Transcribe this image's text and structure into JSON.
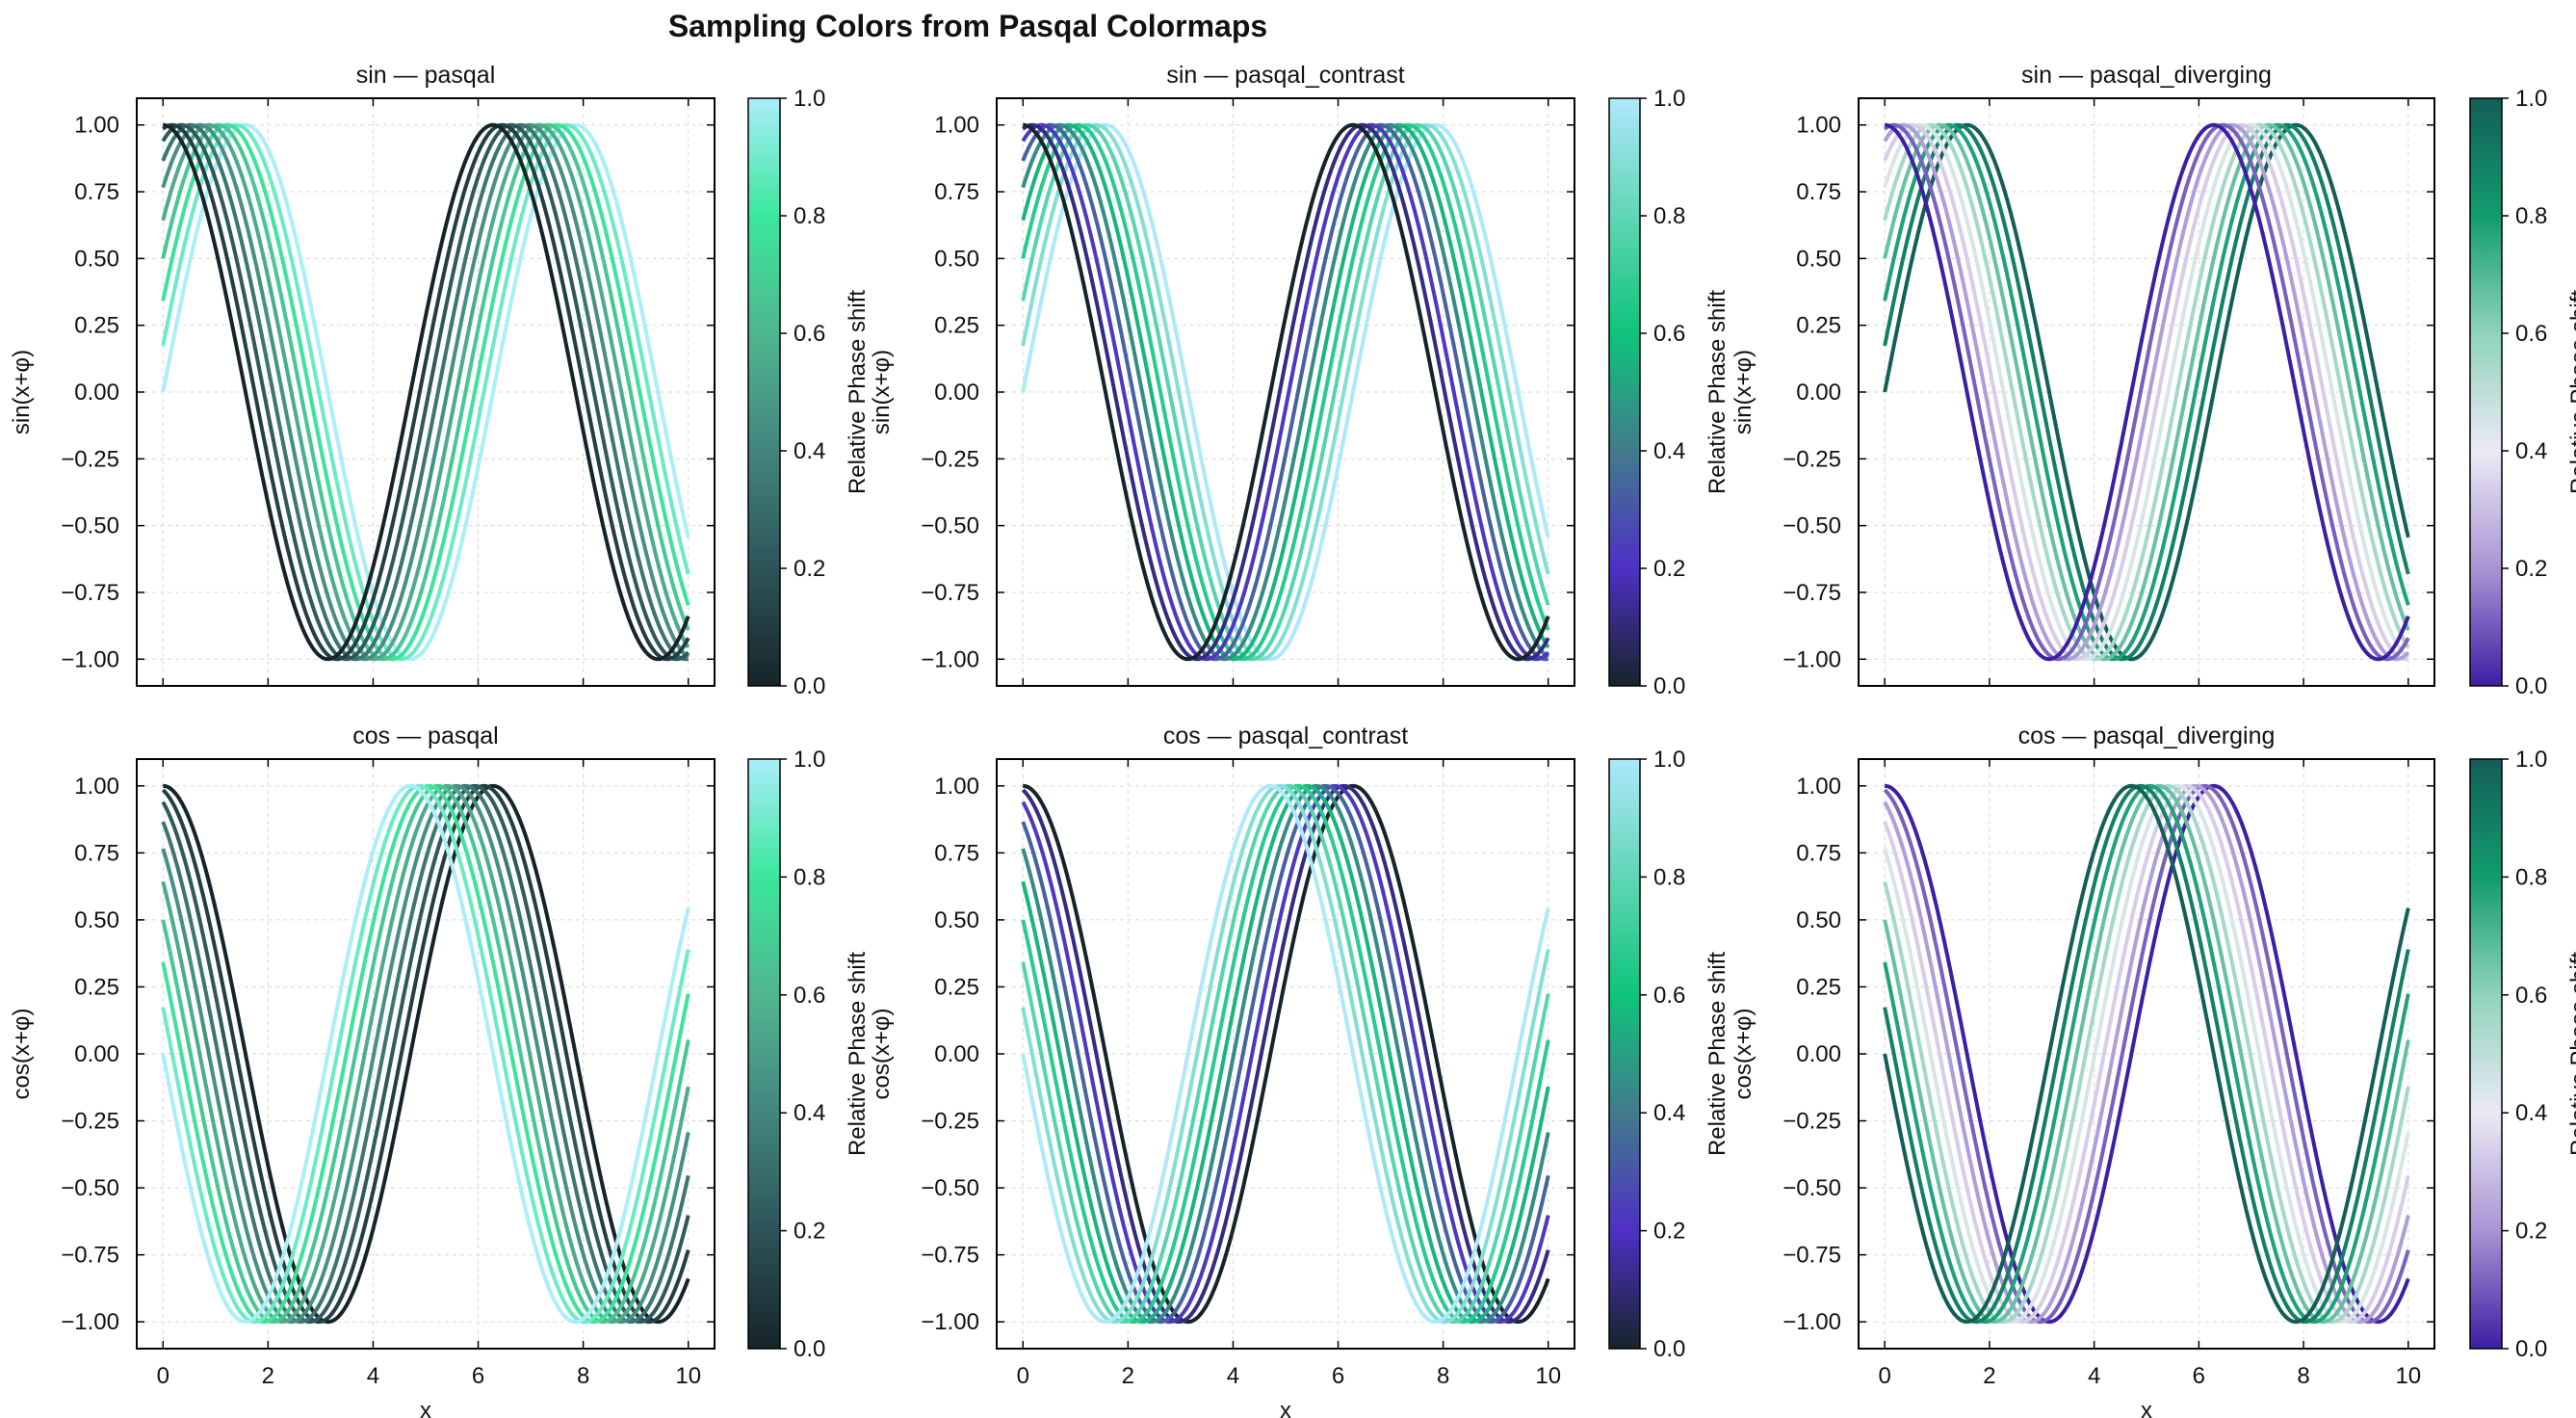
{
  "figure": {
    "title": "Sampling Colors from Pasqal Colormaps"
  },
  "colormaps": {
    "pasqal": [
      "#16242a",
      "#2d5458",
      "#43857e",
      "#4fb68f",
      "#3be79c",
      "#aaeefa"
    ],
    "pasqal_contrast": [
      "#16242a",
      "#4e30c5",
      "#427b8c",
      "#0ec47b",
      "#60d6b5",
      "#aee8fb"
    ],
    "pasqal_diverging": [
      "#3c1fa3",
      "#a795d3",
      "#ece9f4",
      "#8fd3bc",
      "#119c6e",
      "#135e57"
    ]
  },
  "chart_data": [
    {
      "type": "line",
      "title": "sin — pasqal",
      "func": "sin",
      "colormap": "pasqal",
      "xlabel": "",
      "ylabel": "sin(x+φ)",
      "x_range": [
        0,
        10
      ],
      "xlim": [
        -0.5,
        10.5
      ],
      "ylim": [
        -1.1,
        1.1
      ],
      "x_ticks": [
        "0",
        "2",
        "4",
        "6",
        "8",
        "10"
      ],
      "y_ticks": [
        "1.00",
        "0.75",
        "0.50",
        "0.25",
        "0.00",
        "−0.25",
        "−0.50",
        "−0.75",
        "−1.00"
      ],
      "num_series": 10,
      "phase_shift_range": [
        0,
        1.5708
      ],
      "series_color_order": "first series (φ=0) uses colormap value 1.0, last series uses 0.0",
      "grid": true,
      "colorbar": {
        "label": "Relative Phase shift",
        "range": [
          0,
          1
        ],
        "ticks": [
          "0.0",
          "0.2",
          "0.4",
          "0.6",
          "0.8",
          "1.0"
        ]
      }
    },
    {
      "type": "line",
      "title": "sin — pasqal_contrast",
      "func": "sin",
      "colormap": "pasqal_contrast",
      "xlabel": "",
      "ylabel": "sin(x+φ)",
      "x_range": [
        0,
        10
      ],
      "xlim": [
        -0.5,
        10.5
      ],
      "ylim": [
        -1.1,
        1.1
      ],
      "x_ticks": [
        "0",
        "2",
        "4",
        "6",
        "8",
        "10"
      ],
      "y_ticks": [
        "1.00",
        "0.75",
        "0.50",
        "0.25",
        "0.00",
        "−0.25",
        "−0.50",
        "−0.75",
        "−1.00"
      ],
      "num_series": 10,
      "phase_shift_range": [
        0,
        1.5708
      ],
      "series_color_order": "first series (φ=0) uses colormap value 1.0, last series uses 0.0",
      "grid": true,
      "colorbar": {
        "label": "Relative Phase shift",
        "range": [
          0,
          1
        ],
        "ticks": [
          "0.0",
          "0.2",
          "0.4",
          "0.6",
          "0.8",
          "1.0"
        ]
      }
    },
    {
      "type": "line",
      "title": "sin — pasqal_diverging",
      "func": "sin",
      "colormap": "pasqal_diverging",
      "xlabel": "",
      "ylabel": "sin(x+φ)",
      "x_range": [
        0,
        10
      ],
      "xlim": [
        -0.5,
        10.5
      ],
      "ylim": [
        -1.1,
        1.1
      ],
      "x_ticks": [
        "0",
        "2",
        "4",
        "6",
        "8",
        "10"
      ],
      "y_ticks": [
        "1.00",
        "0.75",
        "0.50",
        "0.25",
        "0.00",
        "−0.25",
        "−0.50",
        "−0.75",
        "−1.00"
      ],
      "num_series": 10,
      "phase_shift_range": [
        0,
        1.5708
      ],
      "series_color_order": "first series (φ=0) uses colormap value 1.0, last series uses 0.0",
      "grid": true,
      "colorbar": {
        "label": "Relative Phase shift",
        "range": [
          0,
          1
        ],
        "ticks": [
          "0.0",
          "0.2",
          "0.4",
          "0.6",
          "0.8",
          "1.0"
        ]
      }
    },
    {
      "type": "line",
      "title": "cos — pasqal",
      "func": "cos",
      "colormap": "pasqal",
      "xlabel": "x",
      "ylabel": "cos(x+φ)",
      "x_range": [
        0,
        10
      ],
      "xlim": [
        -0.5,
        10.5
      ],
      "ylim": [
        -1.1,
        1.1
      ],
      "x_ticks": [
        "0",
        "2",
        "4",
        "6",
        "8",
        "10"
      ],
      "y_ticks": [
        "1.00",
        "0.75",
        "0.50",
        "0.25",
        "0.00",
        "−0.25",
        "−0.50",
        "−0.75",
        "−1.00"
      ],
      "num_series": 10,
      "phase_shift_range": [
        0,
        1.5708
      ],
      "series_color_order": "first series (φ=0) uses colormap value 0.0, last series uses 1.0",
      "grid": true,
      "colorbar": {
        "label": "Relative Phase shift",
        "range": [
          0,
          1
        ],
        "ticks": [
          "0.0",
          "0.2",
          "0.4",
          "0.6",
          "0.8",
          "1.0"
        ]
      }
    },
    {
      "type": "line",
      "title": "cos — pasqal_contrast",
      "func": "cos",
      "colormap": "pasqal_contrast",
      "xlabel": "x",
      "ylabel": "cos(x+φ)",
      "x_range": [
        0,
        10
      ],
      "xlim": [
        -0.5,
        10.5
      ],
      "ylim": [
        -1.1,
        1.1
      ],
      "x_ticks": [
        "0",
        "2",
        "4",
        "6",
        "8",
        "10"
      ],
      "y_ticks": [
        "1.00",
        "0.75",
        "0.50",
        "0.25",
        "0.00",
        "−0.25",
        "−0.50",
        "−0.75",
        "−1.00"
      ],
      "num_series": 10,
      "phase_shift_range": [
        0,
        1.5708
      ],
      "series_color_order": "first series (φ=0) uses colormap value 0.0, last series uses 1.0",
      "grid": true,
      "colorbar": {
        "label": "Relative Phase shift",
        "range": [
          0,
          1
        ],
        "ticks": [
          "0.0",
          "0.2",
          "0.4",
          "0.6",
          "0.8",
          "1.0"
        ]
      }
    },
    {
      "type": "line",
      "title": "cos — pasqal_diverging",
      "func": "cos",
      "colormap": "pasqal_diverging",
      "xlabel": "x",
      "ylabel": "cos(x+φ)",
      "x_range": [
        0,
        10
      ],
      "xlim": [
        -0.5,
        10.5
      ],
      "ylim": [
        -1.1,
        1.1
      ],
      "x_ticks": [
        "0",
        "2",
        "4",
        "6",
        "8",
        "10"
      ],
      "y_ticks": [
        "1.00",
        "0.75",
        "0.50",
        "0.25",
        "0.00",
        "−0.25",
        "−0.50",
        "−0.75",
        "−1.00"
      ],
      "num_series": 10,
      "phase_shift_range": [
        0,
        1.5708
      ],
      "series_color_order": "first series (φ=0) uses colormap value 0.0, last series uses 1.0",
      "grid": true,
      "colorbar": {
        "label": "Relative Phase shift",
        "range": [
          0,
          1
        ],
        "ticks": [
          "0.0",
          "0.2",
          "0.4",
          "0.6",
          "0.8",
          "1.0"
        ]
      }
    }
  ]
}
